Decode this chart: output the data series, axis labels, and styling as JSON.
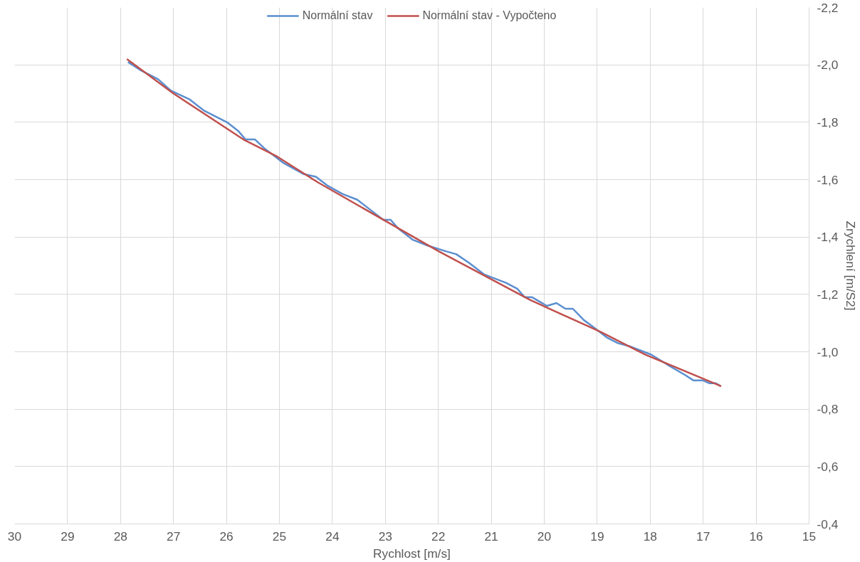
{
  "chart_data": {
    "type": "line",
    "xlabel": "Rychlost [m/s]",
    "ylabel": "Zrychlení [m/S2]",
    "xlim": [
      30,
      15
    ],
    "xticks": [
      30,
      29,
      28,
      27,
      26,
      25,
      24,
      23,
      22,
      21,
      20,
      19,
      18,
      17,
      16,
      15
    ],
    "ylim": [
      -0.4,
      -2.2
    ],
    "yticks": [
      {
        "value": -2.2,
        "label": "-2,2"
      },
      {
        "value": -2.0,
        "label": "-2,0"
      },
      {
        "value": -1.8,
        "label": "-1,8"
      },
      {
        "value": -1.6,
        "label": "-1,6"
      },
      {
        "value": -1.4,
        "label": "-1,4"
      },
      {
        "value": -1.2,
        "label": "-1,2"
      },
      {
        "value": -1.0,
        "label": "-1,0"
      },
      {
        "value": -0.8,
        "label": "-0,8"
      },
      {
        "value": -0.6,
        "label": "-0,6"
      },
      {
        "value": -0.4,
        "label": "-0,4"
      }
    ],
    "grid": true,
    "legend": "top",
    "marker": "none",
    "line_style": "solid",
    "series": [
      {
        "name": "Normální stav",
        "color": "#5b8fd0",
        "x": [
          27.86,
          27.61,
          27.29,
          27.05,
          26.7,
          26.42,
          25.99,
          25.78,
          25.64,
          25.46,
          25.29,
          24.94,
          24.55,
          24.31,
          24.1,
          23.81,
          23.53,
          23.25,
          23.04,
          22.9,
          22.76,
          22.48,
          22.2,
          21.85,
          21.66,
          21.42,
          21.14,
          20.72,
          20.51,
          20.37,
          20.23,
          19.95,
          19.77,
          19.6,
          19.46,
          19.25,
          19.1,
          18.96,
          18.82,
          18.61,
          18.4,
          18.26,
          17.98,
          17.63,
          17.35,
          17.18,
          17.0,
          16.88,
          16.76,
          16.67
        ],
        "values": [
          -2.01,
          -1.98,
          -1.95,
          -1.91,
          -1.88,
          -1.84,
          -1.8,
          -1.77,
          -1.74,
          -1.74,
          -1.71,
          -1.66,
          -1.62,
          -1.61,
          -1.58,
          -1.55,
          -1.53,
          -1.49,
          -1.46,
          -1.46,
          -1.43,
          -1.39,
          -1.37,
          -1.35,
          -1.34,
          -1.31,
          -1.27,
          -1.24,
          -1.22,
          -1.19,
          -1.19,
          -1.16,
          -1.17,
          -1.15,
          -1.15,
          -1.11,
          -1.09,
          -1.07,
          -1.05,
          -1.03,
          -1.02,
          -1.01,
          -0.99,
          -0.95,
          -0.92,
          -0.9,
          -0.9,
          -0.89,
          -0.89,
          -0.88
        ]
      },
      {
        "name": "Normální stav - Vypočteno",
        "color": "#c0504d",
        "x": [
          27.88,
          27.0,
          25.68,
          25.04,
          24.27,
          21.99,
          20.26,
          18.94,
          18.09,
          16.66
        ],
        "values": [
          -2.02,
          -1.9,
          -1.74,
          -1.68,
          -1.59,
          -1.35,
          -1.18,
          -1.07,
          -0.99,
          -0.88
        ]
      }
    ]
  }
}
